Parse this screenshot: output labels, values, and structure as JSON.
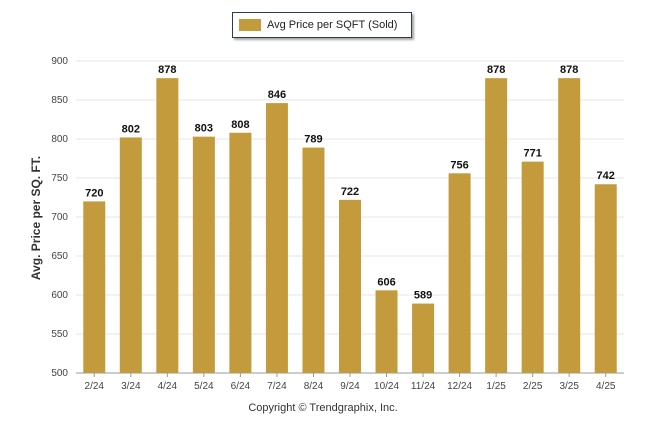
{
  "legend": {
    "label": "Avg Price per SQFT (Sold)"
  },
  "footer": {
    "text": "Copyright © Trendgraphix, Inc."
  },
  "colors": {
    "bar": "#c49b3c",
    "grid": "#e6e6e6",
    "axis": "#999999"
  },
  "chart_data": {
    "type": "bar",
    "categories": [
      "2/24",
      "3/24",
      "4/24",
      "5/24",
      "6/24",
      "7/24",
      "8/24",
      "9/24",
      "10/24",
      "11/24",
      "12/24",
      "1/25",
      "2/25",
      "3/25",
      "4/25"
    ],
    "series": [
      {
        "name": "Avg Price per SQFT (Sold)",
        "values": [
          720,
          802,
          878,
          803,
          808,
          846,
          789,
          722,
          606,
          589,
          756,
          878,
          771,
          878,
          742
        ]
      }
    ],
    "ylabel": "Avg. Price per SQ. FT.",
    "xlabel": "",
    "ylim": [
      500,
      900
    ],
    "yticks": [
      500,
      550,
      600,
      650,
      700,
      750,
      800,
      850,
      900
    ],
    "grid": true,
    "legend_position": "top-center",
    "data_labels": true
  }
}
